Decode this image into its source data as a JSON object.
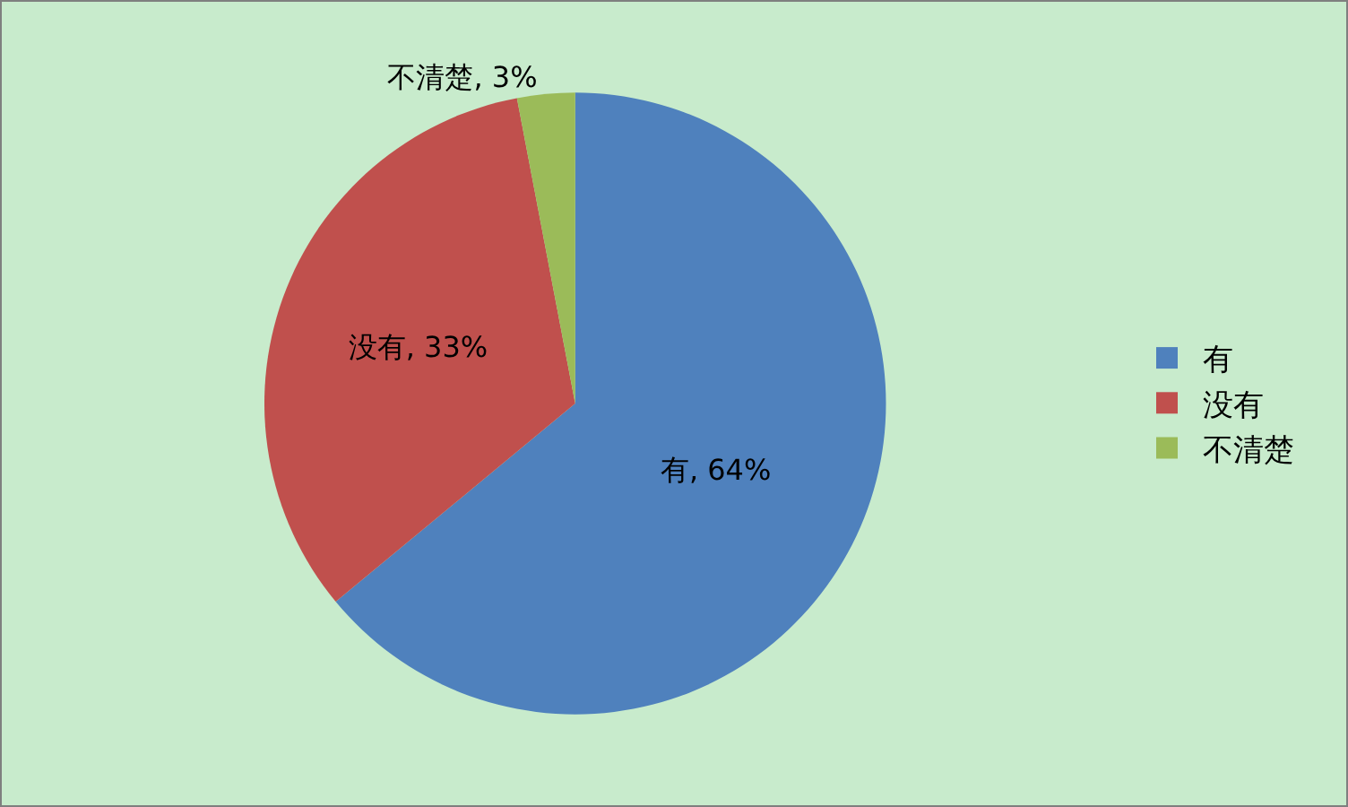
{
  "chart_data": {
    "type": "pie",
    "categories": [
      "有",
      "没有",
      "不清楚"
    ],
    "values": [
      64,
      33,
      3
    ],
    "colors": [
      "#4f81bd",
      "#c0504d",
      "#9bbb59"
    ],
    "value_labels": [
      "有, 64%",
      "没有, 33%",
      "不清楚, 3%"
    ],
    "legend": "right"
  }
}
